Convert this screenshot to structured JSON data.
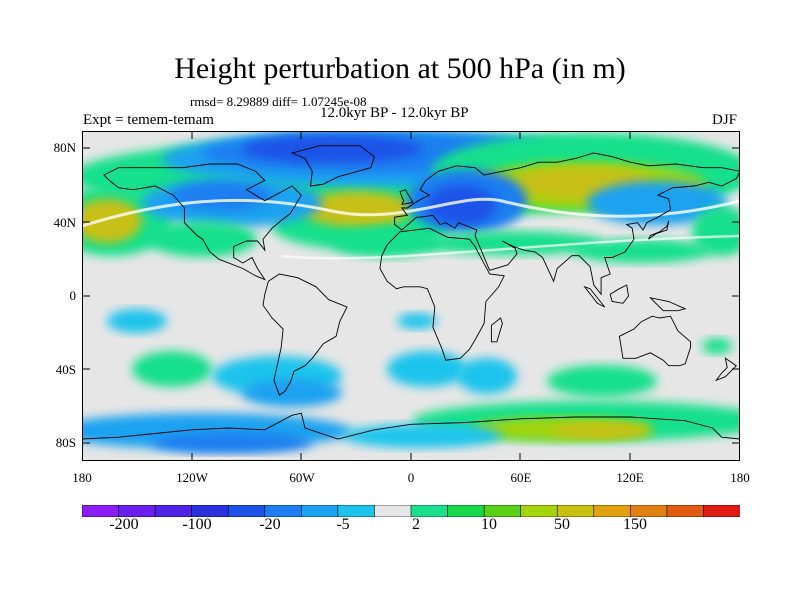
{
  "title": "Height perturbation at 500 hPa (in m)",
  "stats": "rmsd= 8.29889 diff= 1.07245e-08",
  "experiment": "Expt = temem-temam",
  "period": "12.0kyr BP - 12.0kyr BP",
  "season": "DJF",
  "lat_labels": [
    "80N",
    "40N",
    "0",
    "40S",
    "80S"
  ],
  "lon_labels": [
    "180",
    "120W",
    "60W",
    "0",
    "60E",
    "120E",
    "180"
  ],
  "colorbar": {
    "labels": [
      "-200",
      "-100",
      "-20",
      "-5",
      "2",
      "10",
      "50",
      "150"
    ],
    "colors": [
      "#8c1cf5",
      "#6a1ff0",
      "#4f22e6",
      "#2a2fe0",
      "#1c52e8",
      "#1c7ef0",
      "#1ca2f0",
      "#1cc4ec",
      "#e6e6e6",
      "#19e08c",
      "#19d84a",
      "#5ad014",
      "#a3d40c",
      "#c8c012",
      "#e0a010",
      "#e08010",
      "#e05a10",
      "#e01a10"
    ]
  },
  "map_colors": {
    "neutral": "#e6e6e6",
    "mint": "#19e08c",
    "green": "#19d84a",
    "lime": "#a3d40c",
    "olive": "#c8c012",
    "cyan": "#1cc4ec",
    "sky": "#1ca2f0",
    "blue": "#1c7ef0",
    "deep": "#1c52e8",
    "navy": "#2a2fe0"
  }
}
